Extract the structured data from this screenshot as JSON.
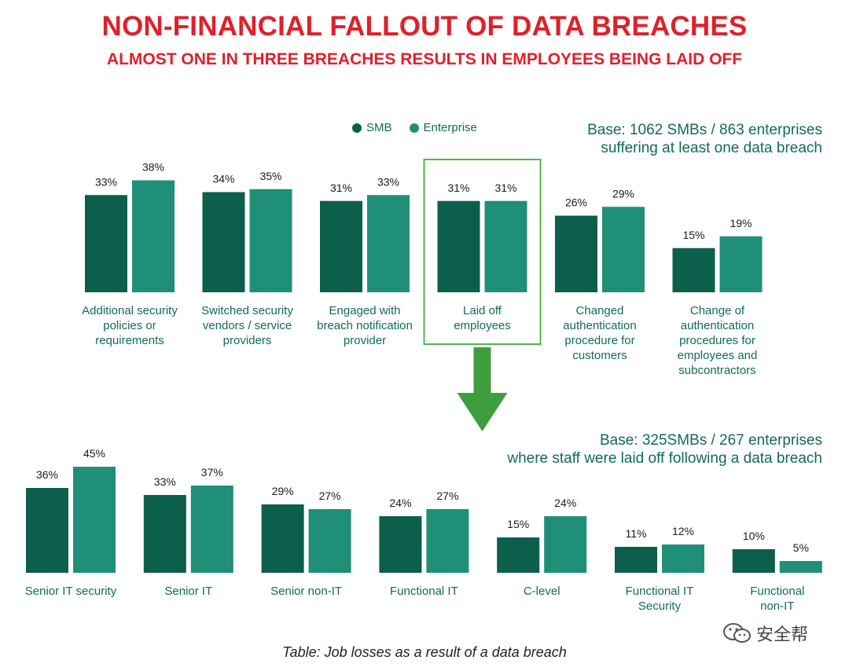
{
  "header": {
    "title": "NON-FINANCIAL FALLOUT OF DATA BREACHES",
    "subtitle": "ALMOST ONE IN THREE BREACHES RESULTS IN EMPLOYEES BEING LAID OFF"
  },
  "legend": {
    "smb": "SMB",
    "enterprise": "Enterprise"
  },
  "colors": {
    "title": "#e0202a",
    "smb": "#0b5f4b",
    "enterprise": "#1f8f77",
    "text": "#116b58",
    "highlight": "#53b748",
    "arrow": "#3e9e3e"
  },
  "base_top": [
    "Base: 1062 SMBs / 863 enterprises",
    "suffering at least one data breach"
  ],
  "base_bottom": [
    "Base: 325SMBs / 267 enterprises",
    "where staff were laid off following a data breach"
  ],
  "caption": "Table: Job losses as a result of a data breach",
  "watermark": {
    "text": "安全帮",
    "icon": "wechat-icon"
  },
  "chart_data": [
    {
      "type": "bar",
      "categories": [
        "Additional security policies or requirements",
        "Switched security vendors / service providers",
        "Engaged with breach notification provider",
        "Laid off employees",
        "Changed authentication procedure for customers",
        "Change of authentication procedures for employees and subcontractors"
      ],
      "category_lines": [
        [
          "Additional security",
          "policies or",
          "requirements"
        ],
        [
          "Switched security",
          "vendors / service",
          "providers"
        ],
        [
          "Engaged with",
          "breach notification",
          "provider"
        ],
        [
          "Laid off",
          "employees"
        ],
        [
          "Changed",
          "authentication",
          "procedure for",
          "customers"
        ],
        [
          "Change of",
          "authentication",
          "procedures for",
          "employees and",
          "subcontractors"
        ]
      ],
      "series": [
        {
          "name": "SMB",
          "values": [
            33,
            34,
            31,
            31,
            26,
            15
          ],
          "labels": [
            "33%",
            "34%",
            "31%",
            "31%",
            "26%",
            "15%"
          ]
        },
        {
          "name": "Enterprise",
          "values": [
            38,
            35,
            33,
            31,
            29,
            19
          ],
          "labels": [
            "38%",
            "35%",
            "33%",
            "31%",
            "29%",
            "19%"
          ]
        }
      ],
      "highlighted_category": "Laid off employees",
      "unit": "%"
    },
    {
      "type": "bar",
      "categories": [
        "Senior IT security",
        "Senior IT",
        "Senior non-IT",
        "Functional IT",
        "C-level",
        "Functional IT Security",
        "Functional non-IT"
      ],
      "category_lines": [
        [
          "Senior IT security"
        ],
        [
          "Senior IT"
        ],
        [
          "Senior non-IT"
        ],
        [
          "Functional IT"
        ],
        [
          "C-level"
        ],
        [
          "Functional IT",
          "Security"
        ],
        [
          "Functional",
          "non-IT"
        ]
      ],
      "series": [
        {
          "name": "SMB",
          "values": [
            36,
            33,
            29,
            24,
            15,
            11,
            10
          ],
          "labels": [
            "36%",
            "33%",
            "29%",
            "24%",
            "15%",
            "11%",
            "10%"
          ]
        },
        {
          "name": "Enterprise",
          "values": [
            45,
            37,
            27,
            27,
            24,
            12,
            5
          ],
          "labels": [
            "45%",
            "37%",
            "27%",
            "27%",
            "24%",
            "12%",
            "5%"
          ]
        }
      ],
      "unit": "%"
    }
  ]
}
